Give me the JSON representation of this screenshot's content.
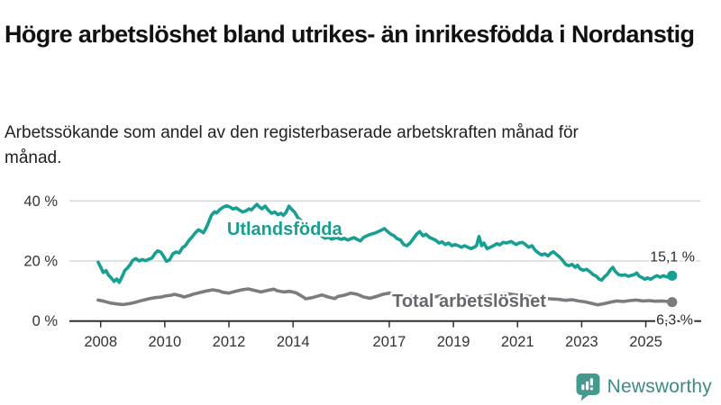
{
  "title": "Högre arbetslöshet bland utrikes- än inrikesfödda i Nordanstig",
  "subtitle": "Arbetssökande som andel av den registerbaserade arbetskraften månad för månad.",
  "footer": {
    "brand": "Newsworthy",
    "logo_icon": "newsworthy-speech-bubble-bar-chart-icon"
  },
  "colors": {
    "foreign_born_line": "#17a092",
    "total_line": "#7b7b80",
    "total_label_text": "#67676d",
    "axis": "#2f2f2f",
    "gridline": "#d8d8d8",
    "tick_text": "#333333",
    "value_label_text": "#2b2b2b",
    "logo_teal": "#45998f",
    "background": "#ffffff"
  },
  "chart_data": {
    "type": "line",
    "unit": "%",
    "grid": "horizontal-only",
    "legend_position": "inline-labels-on-lines",
    "xlim": [
      2007.02,
      2026.73
    ],
    "ylim": [
      0,
      44
    ],
    "y_ticks": [
      {
        "value": 0,
        "label": "0 %"
      },
      {
        "value": 20,
        "label": "20 %"
      },
      {
        "value": 40,
        "label": "40 %"
      }
    ],
    "x_ticks": [
      {
        "value": 2008,
        "label": "2008"
      },
      {
        "value": 2010,
        "label": "2010"
      },
      {
        "value": 2012,
        "label": "2012"
      },
      {
        "value": 2014,
        "label": "2014"
      },
      {
        "value": 2017,
        "label": "2017"
      },
      {
        "value": 2019,
        "label": "2019"
      },
      {
        "value": 2021,
        "label": "2021"
      },
      {
        "value": 2023,
        "label": "2023"
      },
      {
        "value": 2025,
        "label": "2025"
      }
    ],
    "series": [
      {
        "name": "Utlandsfödda",
        "color": "#17a092",
        "end_label": "15,1 %",
        "end_value": 15.1,
        "label_anchor": {
          "t": 2011.94,
          "v": 28.7
        },
        "points": [
          [
            2007.92,
            19.6
          ],
          [
            2008.0,
            18.0
          ],
          [
            2008.08,
            16.2
          ],
          [
            2008.17,
            16.8
          ],
          [
            2008.25,
            15.2
          ],
          [
            2008.33,
            14.4
          ],
          [
            2008.42,
            13.2
          ],
          [
            2008.5,
            14.0
          ],
          [
            2008.58,
            12.9
          ],
          [
            2008.67,
            14.8
          ],
          [
            2008.75,
            16.8
          ],
          [
            2008.83,
            17.6
          ],
          [
            2008.92,
            18.8
          ],
          [
            2009.0,
            20.2
          ],
          [
            2009.1,
            20.8
          ],
          [
            2009.2,
            20.0
          ],
          [
            2009.3,
            20.5
          ],
          [
            2009.4,
            20.1
          ],
          [
            2009.5,
            20.6
          ],
          [
            2009.6,
            21.0
          ],
          [
            2009.7,
            22.6
          ],
          [
            2009.78,
            23.4
          ],
          [
            2009.87,
            23.0
          ],
          [
            2009.95,
            21.8
          ],
          [
            2010.05,
            19.9
          ],
          [
            2010.15,
            20.4
          ],
          [
            2010.25,
            22.4
          ],
          [
            2010.35,
            23.0
          ],
          [
            2010.45,
            22.7
          ],
          [
            2010.55,
            24.4
          ],
          [
            2010.65,
            25.2
          ],
          [
            2010.75,
            26.8
          ],
          [
            2010.85,
            28.0
          ],
          [
            2010.95,
            29.4
          ],
          [
            2011.05,
            30.4
          ],
          [
            2011.12,
            30.0
          ],
          [
            2011.2,
            29.4
          ],
          [
            2011.28,
            30.8
          ],
          [
            2011.37,
            33.0
          ],
          [
            2011.45,
            35.2
          ],
          [
            2011.55,
            36.4
          ],
          [
            2011.62,
            36.0
          ],
          [
            2011.72,
            37.2
          ],
          [
            2011.83,
            38.0
          ],
          [
            2011.93,
            38.4
          ],
          [
            2012.03,
            38.0
          ],
          [
            2012.13,
            37.3
          ],
          [
            2012.23,
            37.7
          ],
          [
            2012.33,
            36.9
          ],
          [
            2012.43,
            36.3
          ],
          [
            2012.53,
            36.7
          ],
          [
            2012.63,
            37.4
          ],
          [
            2012.7,
            37.0
          ],
          [
            2012.78,
            37.9
          ],
          [
            2012.87,
            38.9
          ],
          [
            2012.95,
            38.0
          ],
          [
            2013.03,
            37.4
          ],
          [
            2013.13,
            38.3
          ],
          [
            2013.23,
            36.9
          ],
          [
            2013.33,
            35.9
          ],
          [
            2013.43,
            36.3
          ],
          [
            2013.53,
            35.4
          ],
          [
            2013.62,
            35.9
          ],
          [
            2013.7,
            35.2
          ],
          [
            2013.78,
            36.2
          ],
          [
            2013.87,
            38.3
          ],
          [
            2013.95,
            37.3
          ],
          [
            2014.05,
            36.2
          ],
          [
            2014.15,
            34.4
          ],
          [
            2014.3,
            33.0
          ],
          [
            2014.45,
            31.5
          ],
          [
            2014.6,
            30.0
          ],
          [
            2014.75,
            29.0
          ],
          [
            2014.9,
            28.2
          ],
          [
            2015.0,
            27.6
          ],
          [
            2015.1,
            27.9
          ],
          [
            2015.2,
            27.3
          ],
          [
            2015.35,
            27.8
          ],
          [
            2015.5,
            27.2
          ],
          [
            2015.6,
            27.6
          ],
          [
            2015.7,
            27.0
          ],
          [
            2015.8,
            27.4
          ],
          [
            2015.9,
            27.8
          ],
          [
            2016.0,
            27.2
          ],
          [
            2016.1,
            26.7
          ],
          [
            2016.2,
            27.9
          ],
          [
            2016.3,
            28.4
          ],
          [
            2016.42,
            28.9
          ],
          [
            2016.55,
            29.3
          ],
          [
            2016.7,
            30.0
          ],
          [
            2016.85,
            30.8
          ],
          [
            2016.95,
            29.8
          ],
          [
            2017.05,
            28.9
          ],
          [
            2017.15,
            28.4
          ],
          [
            2017.25,
            27.4
          ],
          [
            2017.35,
            27.0
          ],
          [
            2017.45,
            25.5
          ],
          [
            2017.55,
            25.1
          ],
          [
            2017.65,
            26.0
          ],
          [
            2017.75,
            27.4
          ],
          [
            2017.85,
            28.9
          ],
          [
            2017.95,
            29.8
          ],
          [
            2018.05,
            28.4
          ],
          [
            2018.15,
            28.9
          ],
          [
            2018.25,
            27.9
          ],
          [
            2018.35,
            27.4
          ],
          [
            2018.45,
            26.9
          ],
          [
            2018.55,
            26.0
          ],
          [
            2018.65,
            26.4
          ],
          [
            2018.75,
            25.5
          ],
          [
            2018.85,
            26.0
          ],
          [
            2018.95,
            25.1
          ],
          [
            2019.05,
            25.5
          ],
          [
            2019.15,
            25.1
          ],
          [
            2019.25,
            24.6
          ],
          [
            2019.35,
            25.1
          ],
          [
            2019.45,
            24.6
          ],
          [
            2019.55,
            24.1
          ],
          [
            2019.65,
            24.6
          ],
          [
            2019.72,
            25.1
          ],
          [
            2019.8,
            28.2
          ],
          [
            2019.88,
            25.1
          ],
          [
            2019.95,
            26.0
          ],
          [
            2020.05,
            24.1
          ],
          [
            2020.15,
            24.6
          ],
          [
            2020.25,
            25.1
          ],
          [
            2020.35,
            25.8
          ],
          [
            2020.45,
            25.4
          ],
          [
            2020.55,
            26.2
          ],
          [
            2020.65,
            26.0
          ],
          [
            2020.8,
            26.5
          ],
          [
            2020.95,
            25.5
          ],
          [
            2021.05,
            26.0
          ],
          [
            2021.15,
            26.2
          ],
          [
            2021.25,
            25.5
          ],
          [
            2021.35,
            24.6
          ],
          [
            2021.45,
            25.1
          ],
          [
            2021.55,
            23.6
          ],
          [
            2021.65,
            22.7
          ],
          [
            2021.75,
            22.0
          ],
          [
            2021.85,
            22.4
          ],
          [
            2021.95,
            21.7
          ],
          [
            2022.05,
            22.7
          ],
          [
            2022.12,
            23.1
          ],
          [
            2022.2,
            22.3
          ],
          [
            2022.3,
            21.4
          ],
          [
            2022.4,
            20.3
          ],
          [
            2022.5,
            18.9
          ],
          [
            2022.6,
            18.4
          ],
          [
            2022.7,
            18.9
          ],
          [
            2022.8,
            17.9
          ],
          [
            2022.87,
            18.6
          ],
          [
            2022.95,
            17.4
          ],
          [
            2023.05,
            16.9
          ],
          [
            2023.15,
            17.2
          ],
          [
            2023.25,
            16.5
          ],
          [
            2023.35,
            15.5
          ],
          [
            2023.45,
            15.0
          ],
          [
            2023.55,
            13.9
          ],
          [
            2023.62,
            13.6
          ],
          [
            2023.7,
            14.6
          ],
          [
            2023.8,
            15.6
          ],
          [
            2023.9,
            17.1
          ],
          [
            2023.97,
            17.9
          ],
          [
            2024.05,
            16.5
          ],
          [
            2024.15,
            15.5
          ],
          [
            2024.25,
            15.2
          ],
          [
            2024.35,
            15.4
          ],
          [
            2024.45,
            14.9
          ],
          [
            2024.55,
            15.2
          ],
          [
            2024.65,
            15.5
          ],
          [
            2024.72,
            16.0
          ],
          [
            2024.8,
            14.9
          ],
          [
            2024.9,
            14.4
          ],
          [
            2024.97,
            13.9
          ],
          [
            2025.05,
            14.4
          ],
          [
            2025.15,
            13.9
          ],
          [
            2025.25,
            14.6
          ],
          [
            2025.35,
            15.1
          ],
          [
            2025.45,
            14.6
          ],
          [
            2025.55,
            15.1
          ],
          [
            2025.65,
            14.7
          ],
          [
            2025.75,
            14.9
          ],
          [
            2025.82,
            15.1
          ]
        ]
      },
      {
        "name": "Total arbetslöshet",
        "color": "#7b7b80",
        "end_label": "6,3 %",
        "end_value": 6.3,
        "label_anchor": {
          "t": 2017.09,
          "v": 4.7
        },
        "points": [
          [
            2007.92,
            7.0
          ],
          [
            2008.1,
            6.6
          ],
          [
            2008.3,
            6.0
          ],
          [
            2008.5,
            5.7
          ],
          [
            2008.7,
            5.5
          ],
          [
            2008.9,
            5.8
          ],
          [
            2009.1,
            6.3
          ],
          [
            2009.3,
            6.9
          ],
          [
            2009.5,
            7.4
          ],
          [
            2009.7,
            7.8
          ],
          [
            2009.9,
            8.0
          ],
          [
            2010.0,
            8.3
          ],
          [
            2010.2,
            8.6
          ],
          [
            2010.3,
            8.9
          ],
          [
            2010.5,
            8.4
          ],
          [
            2010.6,
            8.0
          ],
          [
            2010.8,
            8.6
          ],
          [
            2010.9,
            9.0
          ],
          [
            2011.1,
            9.5
          ],
          [
            2011.3,
            10.0
          ],
          [
            2011.5,
            10.4
          ],
          [
            2011.7,
            10.0
          ],
          [
            2011.8,
            9.6
          ],
          [
            2012.0,
            9.3
          ],
          [
            2012.2,
            9.9
          ],
          [
            2012.4,
            10.4
          ],
          [
            2012.6,
            10.7
          ],
          [
            2012.8,
            10.2
          ],
          [
            2013.0,
            9.7
          ],
          [
            2013.2,
            10.2
          ],
          [
            2013.4,
            10.6
          ],
          [
            2013.5,
            10.1
          ],
          [
            2013.7,
            9.7
          ],
          [
            2013.9,
            9.9
          ],
          [
            2014.1,
            9.4
          ],
          [
            2014.3,
            8.1
          ],
          [
            2014.4,
            7.4
          ],
          [
            2014.6,
            7.8
          ],
          [
            2014.8,
            8.4
          ],
          [
            2014.9,
            8.7
          ],
          [
            2015.1,
            8.0
          ],
          [
            2015.3,
            7.5
          ],
          [
            2015.4,
            8.2
          ],
          [
            2015.6,
            8.6
          ],
          [
            2015.8,
            9.3
          ],
          [
            2016.0,
            8.9
          ],
          [
            2016.2,
            8.0
          ],
          [
            2016.4,
            7.6
          ],
          [
            2016.6,
            8.2
          ],
          [
            2016.8,
            8.9
          ],
          [
            2017.0,
            9.3
          ],
          [
            2017.2,
            8.9
          ],
          [
            2017.4,
            8.4
          ],
          [
            2017.6,
            8.0
          ],
          [
            2017.8,
            8.4
          ],
          [
            2018.0,
            8.0
          ],
          [
            2018.2,
            7.6
          ],
          [
            2018.4,
            8.0
          ],
          [
            2018.6,
            8.4
          ],
          [
            2018.8,
            7.9
          ],
          [
            2019.0,
            7.5
          ],
          [
            2019.2,
            7.9
          ],
          [
            2019.4,
            8.2
          ],
          [
            2019.6,
            7.8
          ],
          [
            2019.8,
            8.0
          ],
          [
            2020.0,
            8.3
          ],
          [
            2020.3,
            8.9
          ],
          [
            2020.6,
            9.2
          ],
          [
            2020.9,
            8.8
          ],
          [
            2021.1,
            8.5
          ],
          [
            2021.4,
            8.2
          ],
          [
            2021.7,
            7.8
          ],
          [
            2022.0,
            7.4
          ],
          [
            2022.3,
            7.2
          ],
          [
            2022.5,
            6.9
          ],
          [
            2022.7,
            7.1
          ],
          [
            2022.9,
            6.7
          ],
          [
            2023.1,
            6.4
          ],
          [
            2023.3,
            5.9
          ],
          [
            2023.5,
            5.4
          ],
          [
            2023.7,
            5.8
          ],
          [
            2023.9,
            6.3
          ],
          [
            2024.1,
            6.7
          ],
          [
            2024.3,
            6.5
          ],
          [
            2024.5,
            6.8
          ],
          [
            2024.7,
            7.0
          ],
          [
            2024.9,
            6.7
          ],
          [
            2025.1,
            6.8
          ],
          [
            2025.3,
            6.6
          ],
          [
            2025.5,
            6.7
          ],
          [
            2025.7,
            6.5
          ],
          [
            2025.82,
            6.3
          ]
        ]
      }
    ]
  }
}
